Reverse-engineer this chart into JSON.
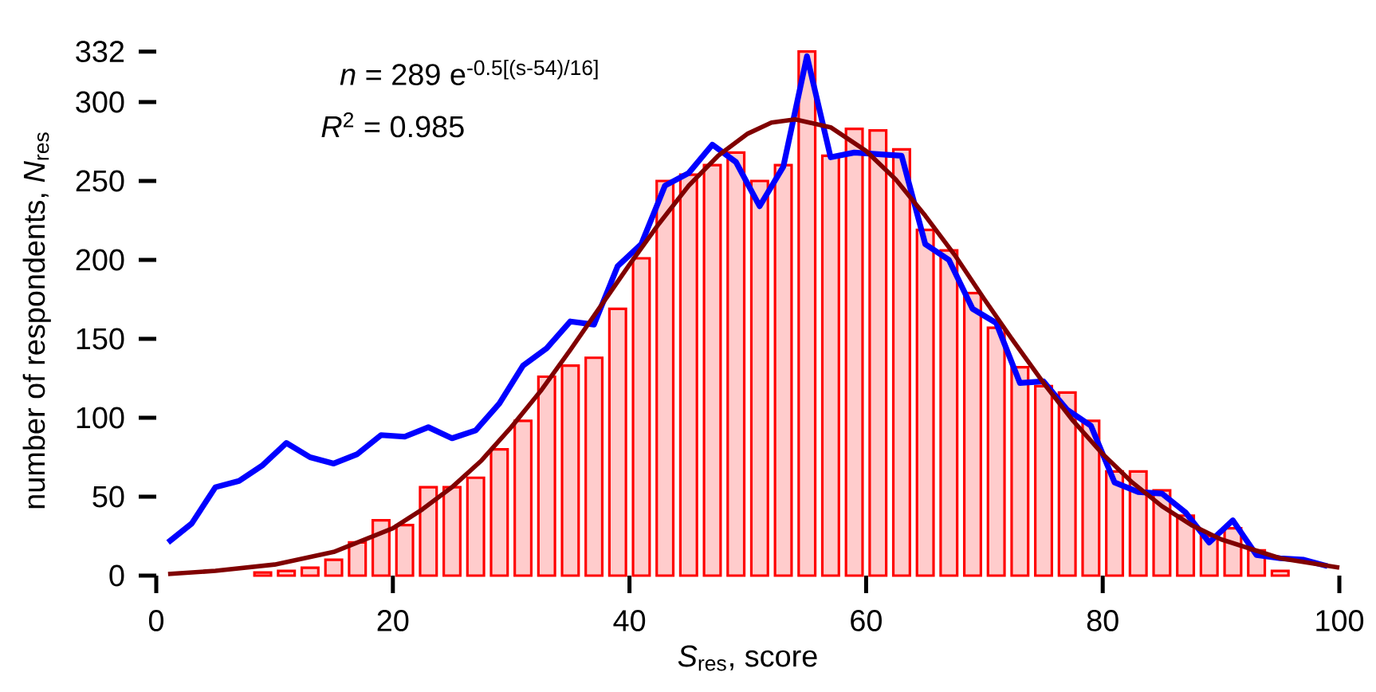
{
  "chart_data": {
    "type": "histogram",
    "xlabel": "*S*$_{res}$, score",
    "ylabel": "number of respondents, *N*$_{res}$",
    "annotations": [
      "*n* = 289 e$^{-0.5[(s-54)/16]}$",
      "*R*$^{2}$ = 0.985"
    ],
    "bins": [
      8,
      10,
      12,
      14,
      16,
      18,
      20,
      22,
      24,
      26,
      28,
      30,
      32,
      34,
      36,
      38,
      40,
      42,
      44,
      46,
      48,
      50,
      52,
      54,
      56,
      58,
      60,
      62,
      64,
      66,
      68,
      70,
      72,
      74,
      76,
      78,
      80,
      82,
      84,
      86,
      88,
      90,
      92,
      94,
      96
    ],
    "values": [
      2,
      3,
      5,
      10,
      21,
      35,
      32,
      56,
      56,
      62,
      80,
      98,
      126,
      133,
      138,
      169,
      201,
      250,
      254,
      260,
      268,
      250,
      260,
      332,
      266,
      283,
      282,
      270,
      219,
      206,
      179,
      157,
      132,
      120,
      116,
      98,
      66,
      66,
      54,
      38,
      25,
      30,
      16,
      3
    ],
    "color": "#ff0000",
    "series": [
      {
        "type": "line",
        "color": "#0000ff",
        "x": [
          1,
          3,
          5,
          7,
          9,
          11,
          13,
          15,
          17,
          19,
          21,
          23,
          25,
          27,
          29,
          31,
          33,
          35,
          37,
          39,
          41,
          43,
          45,
          47,
          49,
          51,
          53,
          55,
          57,
          59,
          61,
          63,
          65,
          67,
          69,
          71,
          73,
          75,
          77,
          79,
          81,
          83,
          85,
          87,
          89,
          91,
          93,
          95,
          97,
          99
        ],
        "values": [
          21,
          33,
          56,
          60,
          70,
          84,
          75,
          71,
          77,
          89,
          88,
          94,
          87,
          92,
          109,
          133,
          144,
          161,
          159,
          196,
          210,
          247,
          255,
          273,
          262,
          234,
          259,
          329,
          265,
          268,
          267,
          266,
          210,
          200,
          169,
          160,
          122,
          123,
          105,
          95,
          59,
          53,
          52,
          40,
          21,
          35,
          13,
          11,
          10,
          6
        ]
      },
      {
        "type": "line",
        "color": "#800000",
        "x": [
          1,
          5,
          10,
          15,
          20,
          22.5,
          25,
          27.5,
          30,
          32.5,
          35,
          37.5,
          40,
          42.5,
          45,
          47.5,
          50,
          52,
          54,
          57,
          60,
          62.5,
          65,
          67.5,
          70,
          72.5,
          75,
          77.5,
          80,
          82.5,
          85,
          87.5,
          90,
          95,
          100
        ],
        "values": [
          1,
          3,
          7,
          15,
          30,
          42,
          56,
          73,
          94,
          117,
          143,
          170,
          197,
          223,
          247,
          266,
          280,
          287,
          289,
          284,
          269,
          251,
          228,
          203,
          175,
          148,
          122,
          98,
          77,
          59,
          44,
          32,
          23,
          11,
          5
        ]
      }
    ],
    "xlim": [
      0,
      100
    ],
    "ylim": [
      0,
      332
    ],
    "xticks": [
      0,
      20,
      40,
      60,
      80,
      100
    ],
    "yticks": [
      0,
      50,
      100,
      150,
      200,
      250,
      300,
      332
    ],
    "grid": false,
    "marker": "none",
    "line_style": "solid"
  }
}
